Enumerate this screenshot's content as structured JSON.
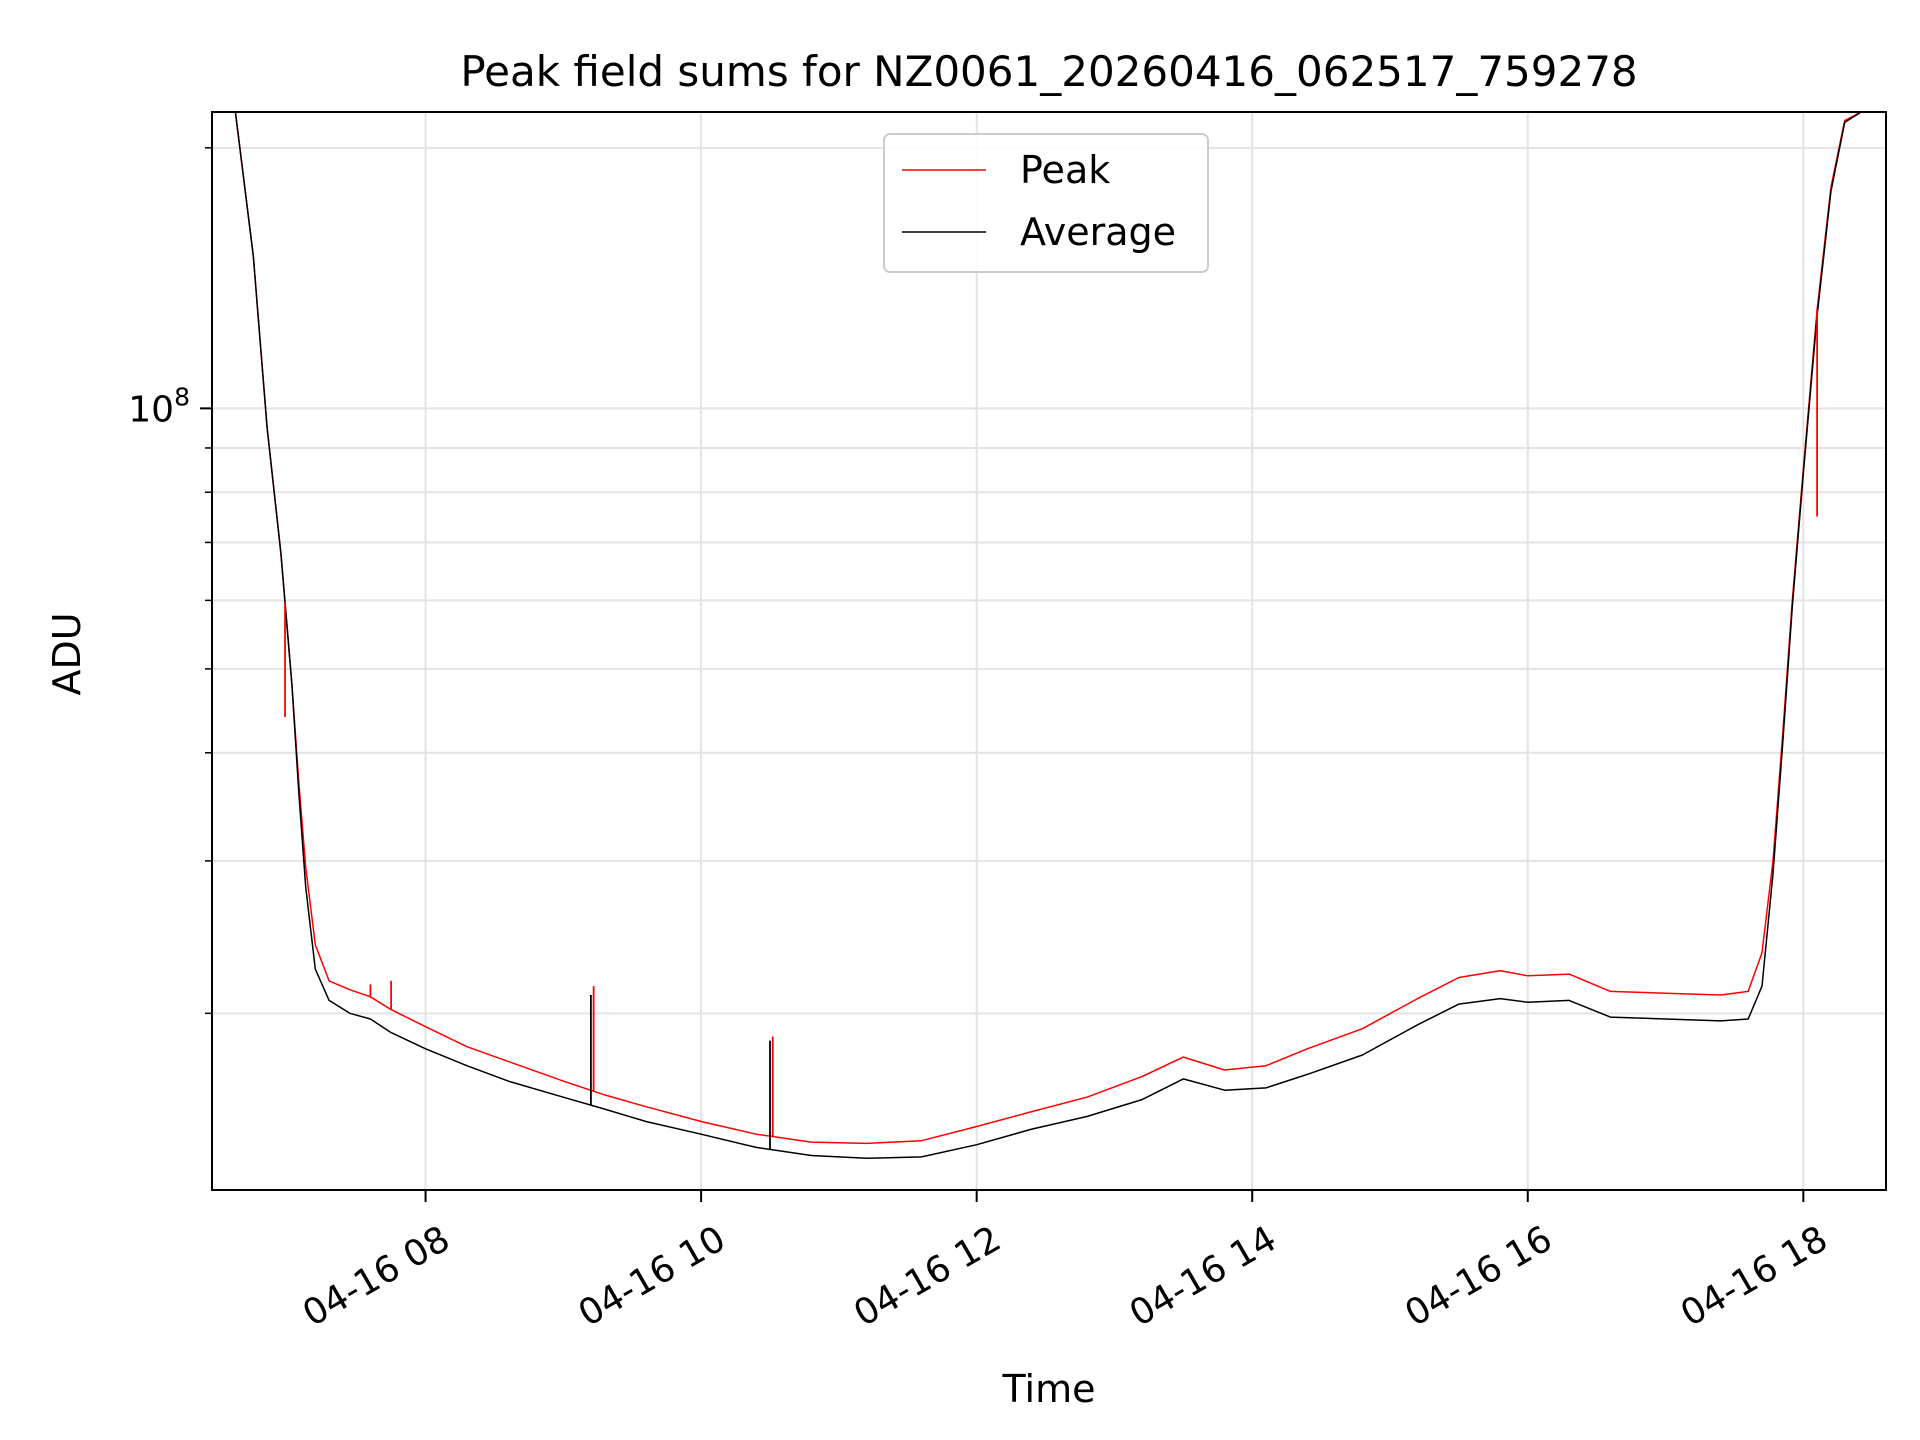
{
  "chart_data": {
    "type": "line",
    "title": "Peak field sums for NZ0061_20260416_062517_759278",
    "xlabel": "Time",
    "ylabel": "ADU",
    "yscale": "log",
    "grid": true,
    "legend_position": "upper-center",
    "xlim": [
      6.45,
      18.6
    ],
    "ylim": [
      12500000,
      220000000
    ],
    "x_unit": "hours on 2026-04-16",
    "x_ticks": [
      {
        "value": 8,
        "label": "04-16 08"
      },
      {
        "value": 10,
        "label": "04-16 10"
      },
      {
        "value": 12,
        "label": "04-16 12"
      },
      {
        "value": 14,
        "label": "04-16 14"
      },
      {
        "value": 16,
        "label": "04-16 16"
      },
      {
        "value": 18,
        "label": "04-16 18"
      }
    ],
    "y_ticks": [
      {
        "value": 100000000,
        "base": "10",
        "exp": "8"
      }
    ],
    "y_minor_ticks": [
      20000000,
      30000000,
      40000000,
      50000000,
      60000000,
      70000000,
      80000000,
      90000000,
      200000000
    ],
    "series": [
      {
        "name": "Peak",
        "color": "#ff0000",
        "x": [
          6.62,
          6.75,
          6.85,
          6.95,
          7.03,
          7.08,
          7.13,
          7.2,
          7.3,
          7.45,
          7.6,
          7.75,
          8.0,
          8.3,
          8.6,
          9.0,
          9.3,
          9.6,
          10.0,
          10.4,
          10.8,
          11.2,
          11.6,
          12.0,
          12.4,
          12.8,
          13.2,
          13.5,
          13.8,
          14.1,
          14.4,
          14.8,
          15.2,
          15.5,
          15.8,
          16.0,
          16.3,
          16.6,
          17.0,
          17.4,
          17.6,
          17.7,
          17.78,
          17.85,
          17.92,
          18.0,
          18.1,
          18.2,
          18.3,
          18.42
        ],
        "y": [
          220000000,
          150000000,
          95000000,
          68000000,
          48000000,
          37000000,
          29500000,
          24000000,
          21800000,
          21300000,
          20900000,
          20200000,
          19300000,
          18300000,
          17600000,
          16700000,
          16100000,
          15600000,
          15000000,
          14500000,
          14200000,
          14150000,
          14250000,
          14800000,
          15400000,
          16000000,
          16900000,
          17800000,
          17200000,
          17400000,
          18200000,
          19200000,
          20800000,
          22000000,
          22400000,
          22100000,
          22200000,
          21200000,
          21100000,
          21000000,
          21200000,
          23500000,
          30000000,
          42000000,
          60000000,
          85000000,
          130000000,
          180000000,
          215000000,
          220000000
        ]
      },
      {
        "name": "Average",
        "color": "#000000",
        "x": [
          6.62,
          6.75,
          6.85,
          6.95,
          7.03,
          7.08,
          7.13,
          7.2,
          7.3,
          7.45,
          7.6,
          7.75,
          8.0,
          8.3,
          8.6,
          9.0,
          9.3,
          9.6,
          10.0,
          10.4,
          10.8,
          11.2,
          11.6,
          12.0,
          12.4,
          12.8,
          13.2,
          13.5,
          13.8,
          14.1,
          14.4,
          14.8,
          15.2,
          15.5,
          15.8,
          16.0,
          16.3,
          16.6,
          17.0,
          17.4,
          17.6,
          17.7,
          17.78,
          17.85,
          17.92,
          18.0,
          18.1,
          18.2,
          18.3,
          18.42
        ],
        "y": [
          220000000,
          150000000,
          95000000,
          68000000,
          48000000,
          36000000,
          28000000,
          22500000,
          20700000,
          20000000,
          19700000,
          19000000,
          18200000,
          17400000,
          16700000,
          16000000,
          15500000,
          15000000,
          14500000,
          14000000,
          13700000,
          13600000,
          13650000,
          14100000,
          14700000,
          15200000,
          15900000,
          16800000,
          16300000,
          16400000,
          17000000,
          17900000,
          19400000,
          20500000,
          20800000,
          20600000,
          20700000,
          19800000,
          19700000,
          19600000,
          19700000,
          21500000,
          29000000,
          41000000,
          59000000,
          84000000,
          128000000,
          178000000,
          214000000,
          220000000
        ]
      }
    ],
    "spikes": [
      {
        "series": "Average",
        "x": 9.2,
        "y": 21000000
      },
      {
        "series": "Peak",
        "x": 9.22,
        "y": 21500000
      },
      {
        "series": "Average",
        "x": 10.5,
        "y": 18600000
      },
      {
        "series": "Peak",
        "x": 10.52,
        "y": 18800000
      },
      {
        "series": "Peak",
        "x": 7.6,
        "y": 21600000
      },
      {
        "series": "Peak",
        "x": 7.75,
        "y": 21800000
      },
      {
        "series": "Peak",
        "x": 6.98,
        "y": 44000000
      },
      {
        "series": "Peak",
        "x": 18.1,
        "y": 75000000
      }
    ]
  }
}
